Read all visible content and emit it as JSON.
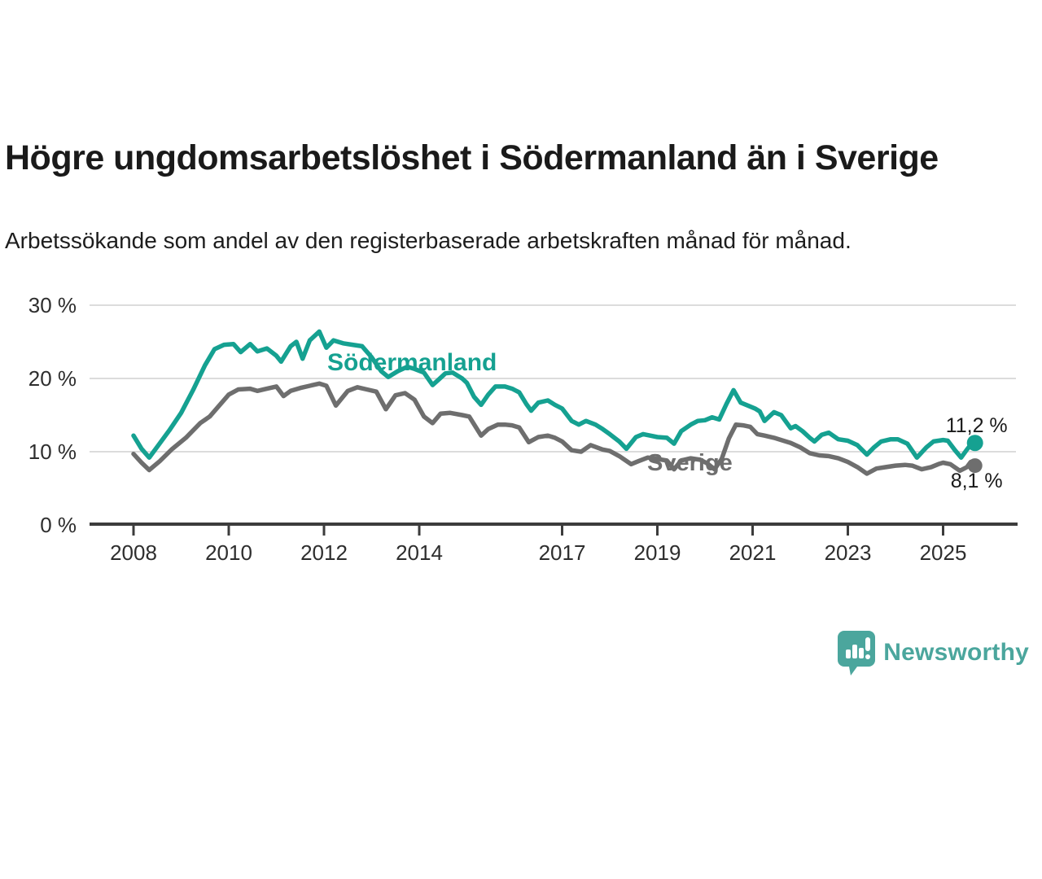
{
  "header": {
    "title": "Högre ungdomsarbetslöshet i Södermanland än i Sverige",
    "subtitle": "Arbetssökande som andel av den registerbaserade arbetskraften månad för månad."
  },
  "chart_data": {
    "type": "line",
    "title": "Högre ungdomsarbetslöshet i Södermanland än i Sverige",
    "subtitle": "Arbetssökande som andel av den registerbaserade arbetskraften månad för månad.",
    "grid": "horizontal",
    "legend_position": "inline-labels",
    "x_axis": {
      "ticks": [
        2008,
        2010,
        2012,
        2014,
        2017,
        2019,
        2021,
        2023,
        2025
      ],
      "tick_labels": [
        "2008",
        "2010",
        "2012",
        "2014",
        "2017",
        "2019",
        "2021",
        "2023",
        "2025"
      ],
      "range": [
        2007.1,
        2026.6
      ]
    },
    "y_axis": {
      "ticks": [
        0,
        10,
        20,
        30
      ],
      "tick_labels": [
        "0 %",
        "10 %",
        "20 %",
        "30 %"
      ],
      "range": [
        0,
        30
      ]
    },
    "series": [
      {
        "name": "Södermanland",
        "color": "#15a191",
        "end_value": 11.2,
        "end_label": "11,2 %",
        "points": [
          [
            2008.0,
            12.2
          ],
          [
            2008.17,
            10.4
          ],
          [
            2008.33,
            9.2
          ],
          [
            2008.5,
            10.7
          ],
          [
            2008.75,
            12.9
          ],
          [
            2009.0,
            15.3
          ],
          [
            2009.25,
            18.4
          ],
          [
            2009.5,
            21.8
          ],
          [
            2009.7,
            24.0
          ],
          [
            2009.9,
            24.6
          ],
          [
            2010.1,
            24.7
          ],
          [
            2010.25,
            23.6
          ],
          [
            2010.45,
            24.7
          ],
          [
            2010.6,
            23.7
          ],
          [
            2010.8,
            24.1
          ],
          [
            2011.0,
            23.1
          ],
          [
            2011.1,
            22.3
          ],
          [
            2011.3,
            24.4
          ],
          [
            2011.42,
            25.0
          ],
          [
            2011.55,
            22.7
          ],
          [
            2011.7,
            25.2
          ],
          [
            2011.9,
            26.4
          ],
          [
            2012.05,
            24.2
          ],
          [
            2012.2,
            25.2
          ],
          [
            2012.4,
            24.8
          ],
          [
            2012.6,
            24.6
          ],
          [
            2012.8,
            24.4
          ],
          [
            2013.0,
            22.9
          ],
          [
            2013.2,
            21.0
          ],
          [
            2013.35,
            20.2
          ],
          [
            2013.55,
            21.0
          ],
          [
            2013.75,
            21.6
          ],
          [
            2013.9,
            21.3
          ],
          [
            2014.1,
            20.8
          ],
          [
            2014.28,
            19.1
          ],
          [
            2014.4,
            19.8
          ],
          [
            2014.55,
            20.7
          ],
          [
            2014.7,
            20.8
          ],
          [
            2014.9,
            20.0
          ],
          [
            2015.0,
            19.4
          ],
          [
            2015.15,
            17.5
          ],
          [
            2015.3,
            16.4
          ],
          [
            2015.45,
            17.8
          ],
          [
            2015.6,
            18.9
          ],
          [
            2015.8,
            18.9
          ],
          [
            2015.95,
            18.6
          ],
          [
            2016.1,
            18.1
          ],
          [
            2016.25,
            16.5
          ],
          [
            2016.35,
            15.6
          ],
          [
            2016.5,
            16.7
          ],
          [
            2016.7,
            17.0
          ],
          [
            2016.85,
            16.4
          ],
          [
            2017.0,
            15.9
          ],
          [
            2017.2,
            14.2
          ],
          [
            2017.35,
            13.7
          ],
          [
            2017.5,
            14.2
          ],
          [
            2017.7,
            13.7
          ],
          [
            2017.85,
            13.1
          ],
          [
            2018.0,
            12.4
          ],
          [
            2018.2,
            11.4
          ],
          [
            2018.35,
            10.4
          ],
          [
            2018.55,
            12.0
          ],
          [
            2018.7,
            12.4
          ],
          [
            2018.85,
            12.2
          ],
          [
            2019.0,
            12.0
          ],
          [
            2019.2,
            11.9
          ],
          [
            2019.35,
            11.1
          ],
          [
            2019.5,
            12.8
          ],
          [
            2019.7,
            13.7
          ],
          [
            2019.85,
            14.2
          ],
          [
            2020.0,
            14.3
          ],
          [
            2020.15,
            14.7
          ],
          [
            2020.3,
            14.4
          ],
          [
            2020.45,
            16.5
          ],
          [
            2020.6,
            18.4
          ],
          [
            2020.75,
            16.7
          ],
          [
            2020.9,
            16.3
          ],
          [
            2021.05,
            15.9
          ],
          [
            2021.15,
            15.5
          ],
          [
            2021.25,
            14.2
          ],
          [
            2021.45,
            15.4
          ],
          [
            2021.6,
            15.0
          ],
          [
            2021.8,
            13.2
          ],
          [
            2021.9,
            13.5
          ],
          [
            2022.05,
            12.8
          ],
          [
            2022.2,
            11.9
          ],
          [
            2022.3,
            11.4
          ],
          [
            2022.45,
            12.3
          ],
          [
            2022.6,
            12.6
          ],
          [
            2022.8,
            11.7
          ],
          [
            2023.0,
            11.5
          ],
          [
            2023.2,
            10.9
          ],
          [
            2023.4,
            9.6
          ],
          [
            2023.55,
            10.6
          ],
          [
            2023.7,
            11.4
          ],
          [
            2023.9,
            11.7
          ],
          [
            2024.05,
            11.7
          ],
          [
            2024.25,
            11.1
          ],
          [
            2024.45,
            9.2
          ],
          [
            2024.65,
            10.6
          ],
          [
            2024.8,
            11.4
          ],
          [
            2025.0,
            11.6
          ],
          [
            2025.1,
            11.5
          ],
          [
            2025.25,
            10.2
          ],
          [
            2025.38,
            9.2
          ],
          [
            2025.5,
            10.3
          ],
          [
            2025.6,
            11.1
          ],
          [
            2025.67,
            11.2
          ]
        ]
      },
      {
        "name": "Sverige",
        "color": "#6e6e6e",
        "end_value": 8.1,
        "end_label": "8,1 %",
        "points": [
          [
            2008.0,
            9.7
          ],
          [
            2008.17,
            8.5
          ],
          [
            2008.33,
            7.5
          ],
          [
            2008.55,
            8.7
          ],
          [
            2008.8,
            10.3
          ],
          [
            2009.1,
            11.9
          ],
          [
            2009.4,
            13.9
          ],
          [
            2009.6,
            14.8
          ],
          [
            2009.8,
            16.3
          ],
          [
            2010.0,
            17.8
          ],
          [
            2010.2,
            18.5
          ],
          [
            2010.45,
            18.6
          ],
          [
            2010.6,
            18.3
          ],
          [
            2010.8,
            18.6
          ],
          [
            2011.0,
            18.9
          ],
          [
            2011.15,
            17.6
          ],
          [
            2011.3,
            18.3
          ],
          [
            2011.5,
            18.7
          ],
          [
            2011.7,
            19.0
          ],
          [
            2011.9,
            19.3
          ],
          [
            2012.05,
            19.0
          ],
          [
            2012.25,
            16.3
          ],
          [
            2012.5,
            18.3
          ],
          [
            2012.7,
            18.8
          ],
          [
            2012.9,
            18.5
          ],
          [
            2013.1,
            18.2
          ],
          [
            2013.3,
            15.8
          ],
          [
            2013.5,
            17.7
          ],
          [
            2013.7,
            18.0
          ],
          [
            2013.9,
            17.1
          ],
          [
            2014.1,
            14.8
          ],
          [
            2014.28,
            13.9
          ],
          [
            2014.45,
            15.2
          ],
          [
            2014.65,
            15.3
          ],
          [
            2014.9,
            15.0
          ],
          [
            2015.05,
            14.8
          ],
          [
            2015.3,
            12.2
          ],
          [
            2015.45,
            13.1
          ],
          [
            2015.65,
            13.7
          ],
          [
            2015.8,
            13.7
          ],
          [
            2015.95,
            13.6
          ],
          [
            2016.1,
            13.3
          ],
          [
            2016.3,
            11.3
          ],
          [
            2016.5,
            12.0
          ],
          [
            2016.7,
            12.2
          ],
          [
            2016.85,
            11.9
          ],
          [
            2017.0,
            11.4
          ],
          [
            2017.2,
            10.2
          ],
          [
            2017.4,
            10.0
          ],
          [
            2017.6,
            10.9
          ],
          [
            2017.85,
            10.3
          ],
          [
            2018.0,
            10.1
          ],
          [
            2018.2,
            9.4
          ],
          [
            2018.45,
            8.3
          ],
          [
            2018.6,
            8.7
          ],
          [
            2018.8,
            9.2
          ],
          [
            2019.0,
            9.0
          ],
          [
            2019.2,
            8.8
          ],
          [
            2019.35,
            7.6
          ],
          [
            2019.5,
            8.8
          ],
          [
            2019.7,
            9.1
          ],
          [
            2019.9,
            8.9
          ],
          [
            2020.05,
            8.4
          ],
          [
            2020.2,
            7.6
          ],
          [
            2020.35,
            9.0
          ],
          [
            2020.5,
            11.8
          ],
          [
            2020.65,
            13.7
          ],
          [
            2020.8,
            13.6
          ],
          [
            2020.95,
            13.4
          ],
          [
            2021.1,
            12.4
          ],
          [
            2021.25,
            12.2
          ],
          [
            2021.45,
            11.9
          ],
          [
            2021.6,
            11.6
          ],
          [
            2021.8,
            11.2
          ],
          [
            2022.0,
            10.6
          ],
          [
            2022.2,
            9.8
          ],
          [
            2022.4,
            9.5
          ],
          [
            2022.6,
            9.4
          ],
          [
            2022.8,
            9.1
          ],
          [
            2023.0,
            8.6
          ],
          [
            2023.2,
            7.9
          ],
          [
            2023.4,
            7.0
          ],
          [
            2023.6,
            7.7
          ],
          [
            2023.8,
            7.9
          ],
          [
            2024.0,
            8.1
          ],
          [
            2024.2,
            8.2
          ],
          [
            2024.35,
            8.1
          ],
          [
            2024.55,
            7.6
          ],
          [
            2024.75,
            7.9
          ],
          [
            2024.9,
            8.3
          ],
          [
            2025.0,
            8.5
          ],
          [
            2025.15,
            8.3
          ],
          [
            2025.35,
            7.4
          ],
          [
            2025.5,
            7.9
          ],
          [
            2025.58,
            8.6
          ],
          [
            2025.67,
            8.1
          ]
        ]
      }
    ]
  },
  "colors": {
    "sodermanland": "#15a191",
    "sverige": "#6e6e6e",
    "axis": "#3c3c3c",
    "gridline": "#dcdcdc",
    "text": "#1a1a1a",
    "brand": "#4ba69d"
  },
  "footer": {
    "brand": "Newsworthy",
    "logo_icon": "bar-chart-speech-bubble-icon"
  }
}
